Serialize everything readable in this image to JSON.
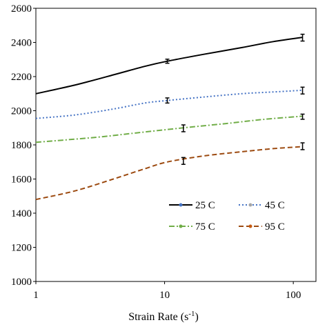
{
  "chart_data": {
    "type": "line",
    "title": "",
    "xlabel": "Strain Rate (s",
    "xlabel_sup": "-1",
    "xlabel_suffix": ")",
    "ylabel": "",
    "x_scale": "log",
    "xlim": [
      1,
      150
    ],
    "ylim": [
      1000,
      2600
    ],
    "x_ticks": [
      1,
      10,
      100
    ],
    "x_tick_labels": [
      "1",
      "10",
      "100"
    ],
    "y_ticks": [
      1000,
      1200,
      1400,
      1600,
      1800,
      2000,
      2200,
      2400,
      2600
    ],
    "y_tick_labels": [
      "1000",
      "1200",
      "1400",
      "1600",
      "1800",
      "2000",
      "2200",
      "2400",
      "2600"
    ],
    "grid": false,
    "legend_position": "bottom-right",
    "series": [
      {
        "name": "25 C",
        "color": "#000000",
        "dash": "solid",
        "marker_color": "#4472c4",
        "curve": [
          [
            1,
            2100
          ],
          [
            2,
            2150
          ],
          [
            4,
            2210
          ],
          [
            7,
            2260
          ],
          [
            10.5,
            2290
          ],
          [
            20,
            2330
          ],
          [
            40,
            2370
          ],
          [
            70,
            2405
          ],
          [
            118,
            2430
          ]
        ],
        "points": [
          {
            "x": 10.5,
            "y": 2290,
            "err": 12
          },
          {
            "x": 118,
            "y": 2428,
            "err": 20
          }
        ]
      },
      {
        "name": "45 C",
        "color": "#4472c4",
        "dash": "dot",
        "marker_color": "#a5a5a5",
        "curve": [
          [
            1,
            1955
          ],
          [
            2,
            1975
          ],
          [
            4,
            2010
          ],
          [
            7,
            2045
          ],
          [
            10.5,
            2060
          ],
          [
            20,
            2080
          ],
          [
            40,
            2100
          ],
          [
            70,
            2110
          ],
          [
            118,
            2120
          ]
        ],
        "points": [
          {
            "x": 10.5,
            "y": 2060,
            "err": 15
          },
          {
            "x": 118,
            "y": 2118,
            "err": 20
          }
        ]
      },
      {
        "name": "75 C",
        "color": "#70ad47",
        "dash": "dashdot",
        "marker_color": "#70ad47",
        "curve": [
          [
            1,
            1815
          ],
          [
            3,
            1845
          ],
          [
            6,
            1870
          ],
          [
            14,
            1900
          ],
          [
            30,
            1925
          ],
          [
            60,
            1950
          ],
          [
            118,
            1968
          ]
        ],
        "points": [
          {
            "x": 14,
            "y": 1897,
            "err": 20
          },
          {
            "x": 118,
            "y": 1965,
            "err": 15
          }
        ]
      },
      {
        "name": "95 C",
        "color": "#9c4a10",
        "dash": "dash",
        "marker_color": "#c55a11",
        "curve": [
          [
            1,
            1480
          ],
          [
            2,
            1530
          ],
          [
            4,
            1600
          ],
          [
            7,
            1660
          ],
          [
            10.5,
            1700
          ],
          [
            20,
            1735
          ],
          [
            40,
            1760
          ],
          [
            70,
            1778
          ],
          [
            118,
            1790
          ]
        ],
        "points": [
          {
            "x": 14,
            "y": 1706,
            "err": 20
          },
          {
            "x": 118,
            "y": 1792,
            "err": 20
          }
        ]
      }
    ]
  }
}
